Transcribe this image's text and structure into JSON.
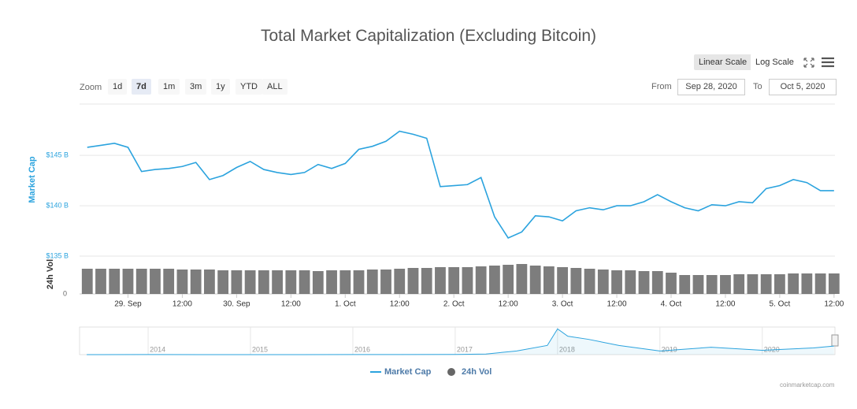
{
  "chart_data": [
    {
      "type": "line",
      "title": "Total Market Capitalization (Excluding Bitcoin)",
      "scale_buttons": [
        "Linear Scale",
        "Log Scale"
      ],
      "zoom_label": "Zoom",
      "zoom_buttons": [
        "1d",
        "7d",
        "1m",
        "3m",
        "1y",
        "YTD",
        "ALL"
      ],
      "range": {
        "from_label": "From",
        "from": "Sep 28, 2020",
        "to_label": "To",
        "to": "Oct 5, 2020"
      },
      "credit": "coinmarketcap.com",
      "y_label": "Market Cap",
      "y2_label": "24h Vol",
      "x": [
        -9,
        -6,
        -3,
        0,
        3,
        6,
        9,
        12,
        15,
        18,
        21,
        24,
        27,
        30,
        33,
        36,
        39,
        42,
        45,
        48,
        51,
        54,
        57,
        60,
        63,
        66,
        69,
        72,
        75,
        78,
        81,
        84,
        87,
        90,
        93,
        96,
        99,
        102,
        105,
        108,
        111,
        114,
        117,
        120,
        123,
        126,
        129,
        132,
        135,
        138,
        141,
        144,
        147,
        150,
        153,
        156
      ],
      "series": [
        {
          "name": "Market Cap",
          "color": "#2ba3de",
          "values": [
            145.8,
            146.0,
            146.2,
            145.8,
            143.4,
            143.6,
            143.7,
            143.9,
            144.3,
            142.6,
            143.0,
            143.8,
            144.4,
            143.6,
            143.3,
            143.1,
            143.3,
            144.1,
            143.7,
            144.2,
            145.6,
            145.9,
            146.4,
            147.4,
            147.1,
            146.7,
            141.9,
            142.0,
            142.1,
            142.8,
            138.9,
            136.8,
            137.4,
            139.0,
            138.9,
            138.5,
            139.5,
            139.8,
            139.6,
            140.0,
            140.0,
            140.4,
            141.1,
            140.4,
            139.8,
            139.5,
            140.1,
            140.0,
            140.4,
            140.3,
            141.7,
            142.0,
            142.6,
            142.3,
            141.5,
            141.5
          ]
        },
        {
          "name": "24h Vol",
          "color": "#666666",
          "axis": "y2",
          "values": [
            32,
            32,
            32,
            32,
            32,
            32,
            32,
            31,
            31,
            31,
            30,
            30,
            30,
            30,
            30,
            30,
            30,
            29,
            30,
            30,
            30,
            31,
            31,
            32,
            33,
            33,
            34,
            34,
            34,
            35,
            36,
            37,
            38,
            36,
            35,
            34,
            33,
            32,
            31,
            30,
            30,
            29,
            29,
            27,
            24,
            24,
            24,
            24,
            25,
            25,
            25,
            25,
            26,
            26,
            26,
            26
          ]
        }
      ],
      "xlim": [
        -10.7,
        156.2
      ],
      "xticks": [
        {
          "value": 0,
          "label": "29. Sep"
        },
        {
          "value": 12,
          "label": "12:00"
        },
        {
          "value": 24,
          "label": "30. Sep"
        },
        {
          "value": 36,
          "label": "12:00"
        },
        {
          "value": 48,
          "label": "1. Oct"
        },
        {
          "value": 60,
          "label": "12:00"
        },
        {
          "value": 72,
          "label": "2. Oct"
        },
        {
          "value": 84,
          "label": "12:00"
        },
        {
          "value": 96,
          "label": "3. Oct"
        },
        {
          "value": 108,
          "label": "12:00"
        },
        {
          "value": 120,
          "label": "4. Oct"
        },
        {
          "value": 132,
          "label": "12:00"
        },
        {
          "value": 144,
          "label": "5. Oct"
        },
        {
          "value": 156,
          "label": "12:00"
        }
      ],
      "ylim": [
        135,
        150.1
      ],
      "yticks": [
        {
          "value": 135,
          "label": "$135 B"
        },
        {
          "value": 140,
          "label": "$140 B"
        },
        {
          "value": 145,
          "label": "$145 B"
        }
      ],
      "y2lim": [
        0,
        48
      ],
      "y2ticks": [
        0
      ],
      "grid": true
    },
    {
      "type": "area",
      "x": [
        2013.4,
        2014,
        2015,
        2016,
        2017,
        2017.3,
        2017.6,
        2017.9,
        2018,
        2018.1,
        2018.3,
        2018.6,
        2019,
        2019.5,
        2020,
        2020.5,
        2020.7
      ],
      "values": [
        0,
        1,
        0.5,
        1,
        3,
        10,
        60,
        150,
        420,
        300,
        250,
        150,
        60,
        120,
        70,
        110,
        140
      ],
      "color": "#2ba3de",
      "xlim": [
        2013.33,
        2020.71
      ],
      "xticks": [
        2014,
        2015,
        2016,
        2017,
        2018,
        2019,
        2020
      ],
      "ylim": [
        0,
        450
      ]
    }
  ]
}
